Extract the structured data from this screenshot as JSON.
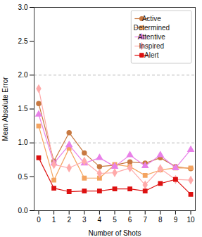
{
  "chart_data": {
    "type": "line",
    "xlabel": "Number of Shots",
    "ylabel": "Mean Absolute Error",
    "x": [
      0,
      1,
      2,
      3,
      4,
      5,
      6,
      7,
      8,
      9,
      10
    ],
    "series": [
      {
        "name": "Active",
        "color": "#c87941",
        "marker": "circle",
        "values": [
          1.58,
          0.73,
          1.15,
          0.85,
          0.65,
          0.67,
          0.72,
          0.7,
          0.78,
          0.65,
          0.62
        ]
      },
      {
        "name": "Determined",
        "color": "#f4a460",
        "marker": "square",
        "values": [
          1.25,
          0.45,
          0.92,
          0.48,
          0.48,
          0.68,
          0.65,
          0.52,
          0.6,
          0.63,
          0.63
        ]
      },
      {
        "name": "Attentive",
        "color": "#e880e8",
        "marker": "triangle",
        "values": [
          1.42,
          0.7,
          0.97,
          0.7,
          0.78,
          0.65,
          0.82,
          0.66,
          0.82,
          0.63,
          0.9
        ]
      },
      {
        "name": "Inspired",
        "color": "#ffaaaa",
        "marker": "diamond",
        "values": [
          1.8,
          0.68,
          0.63,
          0.73,
          0.55,
          0.56,
          0.63,
          0.38,
          0.62,
          0.46,
          0.45
        ]
      },
      {
        "name": "Alert",
        "color": "#dd1111",
        "marker": "square",
        "values": [
          0.78,
          0.33,
          0.28,
          0.29,
          0.29,
          0.32,
          0.32,
          0.29,
          0.4,
          0.46,
          0.24
        ]
      }
    ],
    "xlim": [
      -0.3,
      10.3
    ],
    "xticks": [
      0,
      1,
      2,
      3,
      4,
      5,
      6,
      7,
      8,
      9,
      10
    ],
    "ylim": [
      0.0,
      3.0
    ],
    "yticks": [
      {
        "value": 0.0,
        "label": "0.0"
      },
      0.5,
      {
        "value": 1.0,
        "label": "1.0"
      },
      1.5,
      {
        "value": 2.0,
        "label": "2.0"
      },
      2.5,
      {
        "value": 3.0,
        "label": "3.0"
      }
    ],
    "grid": [
      1.0,
      2.0
    ],
    "legend": "upper right"
  }
}
